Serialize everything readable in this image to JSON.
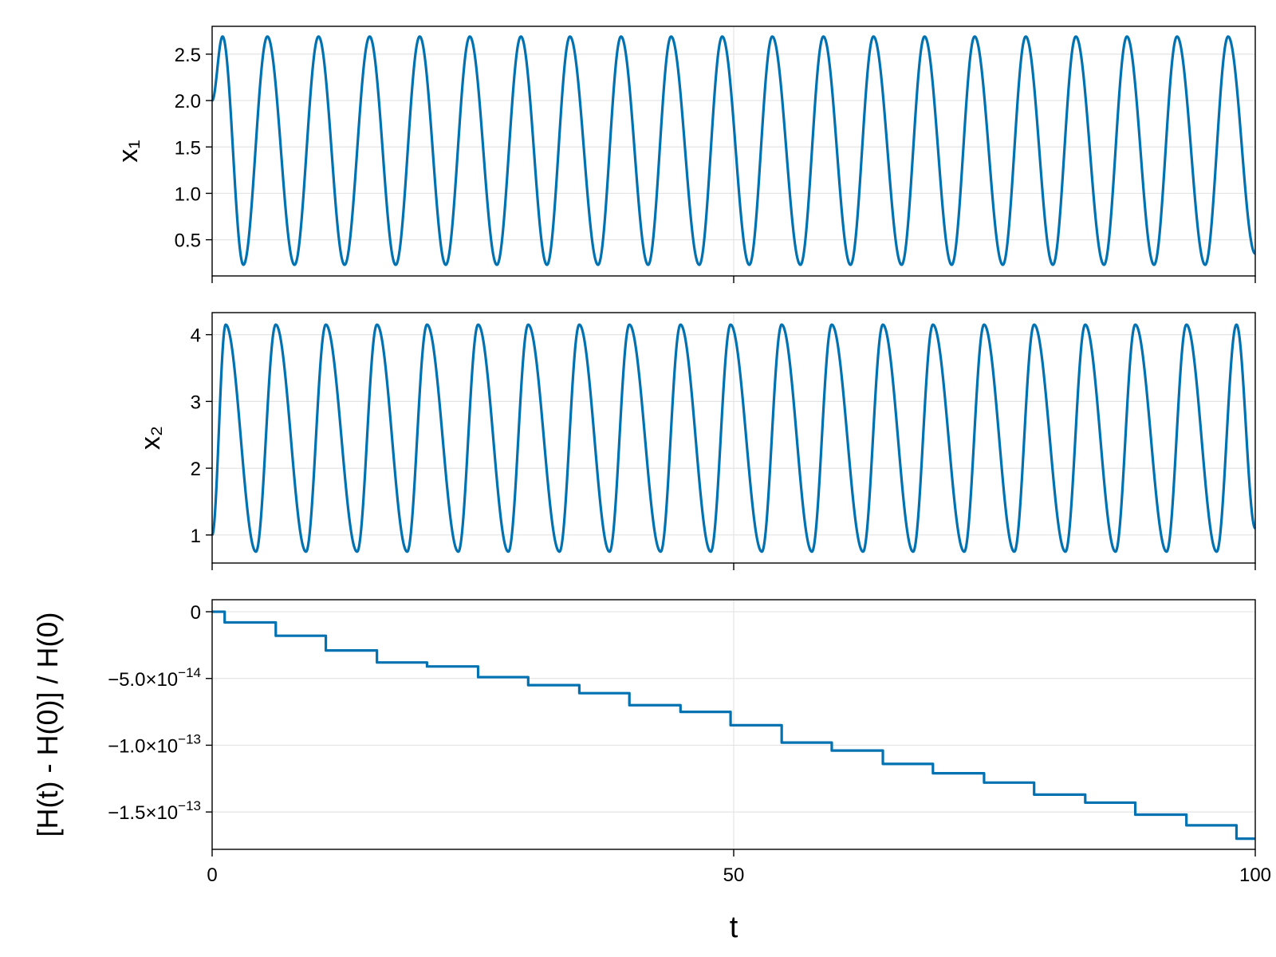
{
  "colors": {
    "series": "#0072b2"
  },
  "chart_data": [
    {
      "type": "line",
      "ylabel": "x₁",
      "xlim": [
        0,
        100
      ],
      "ylim": [
        0.11,
        2.8
      ],
      "yticks": [
        0.5,
        1.0,
        1.5,
        2.0,
        2.5
      ],
      "ytick_labels": [
        "0.5",
        "1.0",
        "1.5",
        "2.0",
        "2.5"
      ],
      "xticks": [
        0,
        50,
        100
      ],
      "show_xtick_labels": false,
      "grid": true,
      "series": [
        {
          "oscillation": {
            "peaks_x": [
              1.0,
              5.3,
              10.2,
              15.1,
              19.9,
              24.7,
              29.6,
              34.3,
              39.2,
              44.0,
              48.9,
              53.7,
              58.6,
              63.4,
              68.3,
              73.1,
              78.0,
              82.8,
              87.7,
              92.5,
              97.4
            ],
            "troughs_x": [
              3.0,
              7.9,
              12.7,
              17.6,
              22.4,
              27.3,
              32.1,
              37.0,
              41.8,
              46.7,
              51.5,
              56.4,
              61.2,
              66.1,
              70.9,
              75.8,
              80.6,
              85.5,
              90.3,
              95.2
            ],
            "peak_y": 2.69,
            "trough_y": 0.23,
            "start": [
              0,
              2.0
            ],
            "end": [
              100,
              0.35
            ]
          }
        }
      ]
    },
    {
      "type": "line",
      "ylabel": "x₂",
      "xlim": [
        0,
        100
      ],
      "ylim": [
        0.58,
        4.33
      ],
      "yticks": [
        1,
        2,
        3,
        4
      ],
      "ytick_labels": [
        "1",
        "2",
        "3",
        "4"
      ],
      "xticks": [
        0,
        50,
        100
      ],
      "show_xtick_labels": false,
      "grid": true,
      "series": [
        {
          "oscillation": {
            "peaks_x": [
              1.3,
              6.1,
              10.9,
              15.8,
              20.6,
              25.5,
              30.3,
              35.2,
              40.0,
              44.9,
              49.7,
              54.6,
              59.4,
              64.3,
              69.1,
              74.0,
              78.8,
              83.7,
              88.5,
              93.4,
              98.2
            ],
            "troughs_x": [
              4.2,
              9.0,
              13.9,
              18.7,
              23.6,
              28.4,
              33.3,
              38.1,
              43.0,
              47.8,
              52.7,
              57.5,
              62.4,
              67.2,
              72.1,
              76.9,
              81.8,
              86.6,
              91.5,
              96.3
            ],
            "peak_y": 4.15,
            "trough_y": 0.75,
            "start": [
              0,
              1.0
            ],
            "end": [
              100,
              1.1
            ]
          }
        }
      ]
    },
    {
      "type": "line",
      "ylabel": "[H(t) - H(0)] / H(0)",
      "xlabel": "t",
      "xlim": [
        0,
        100
      ],
      "ylim": [
        -1.78e-13,
        9e-15
      ],
      "yticks": [
        0,
        -5e-14,
        -1e-13,
        -1.5e-13
      ],
      "ytick_labels": [
        {
          "base": "0",
          "exp": ""
        },
        {
          "base": "−5.0×10",
          "exp": "−14"
        },
        {
          "base": "−1.0×10",
          "exp": "−13"
        },
        {
          "base": "−1.5×10",
          "exp": "−13"
        }
      ],
      "xticks": [
        0,
        50,
        100
      ],
      "xtick_labels": [
        "0",
        "50",
        "100"
      ],
      "grid": true,
      "series": [
        {
          "steps_x": [
            0,
            1.2,
            6.1,
            10.9,
            15.8,
            20.6,
            25.5,
            30.3,
            35.2,
            40.0,
            44.9,
            49.7,
            54.6,
            59.4,
            64.3,
            69.1,
            74.0,
            78.8,
            83.7,
            88.5,
            93.4,
            98.2,
            100
          ],
          "steps_y": [
            0.0,
            -8e-15,
            -1.8e-14,
            -2.9e-14,
            -3.8e-14,
            -4.1e-14,
            -4.9e-14,
            -5.5e-14,
            -6.1e-14,
            -7e-14,
            -7.5e-14,
            -8.5e-14,
            -9.8e-14,
            -1.04e-13,
            -1.14e-13,
            -1.21e-13,
            -1.28e-13,
            -1.37e-13,
            -1.43e-13,
            -1.52e-13,
            -1.6e-13,
            -1.7e-13,
            -1.7e-13
          ]
        }
      ]
    }
  ]
}
